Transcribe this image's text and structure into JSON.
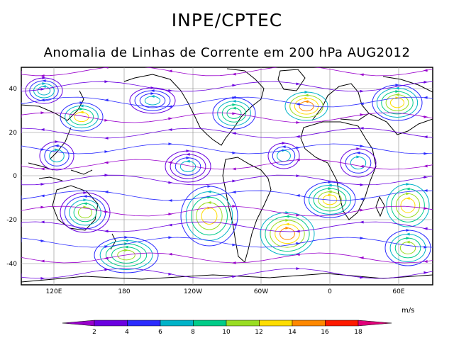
{
  "header": {
    "title": "INPE/CPTEC",
    "subtitle": "Anomalia de Linhas de Corrente em 200 hPa AUG2012"
  },
  "map": {
    "y_ticks": [
      "40",
      "20",
      "0",
      "-20",
      "-40"
    ],
    "x_ticks": [
      "120E",
      "180",
      "120W",
      "60W",
      "0",
      "60E"
    ]
  },
  "colorbar": {
    "unit": "m/s",
    "labels": [
      "2",
      "4",
      "6",
      "8",
      "10",
      "12",
      "14",
      "16",
      "18"
    ],
    "colors": [
      "#9900cc",
      "#6a00e0",
      "#2b2bff",
      "#00b3c8",
      "#00cc88",
      "#99dd22",
      "#ffdd00",
      "#ff8800",
      "#ff1a00",
      "#e0007a"
    ]
  }
}
